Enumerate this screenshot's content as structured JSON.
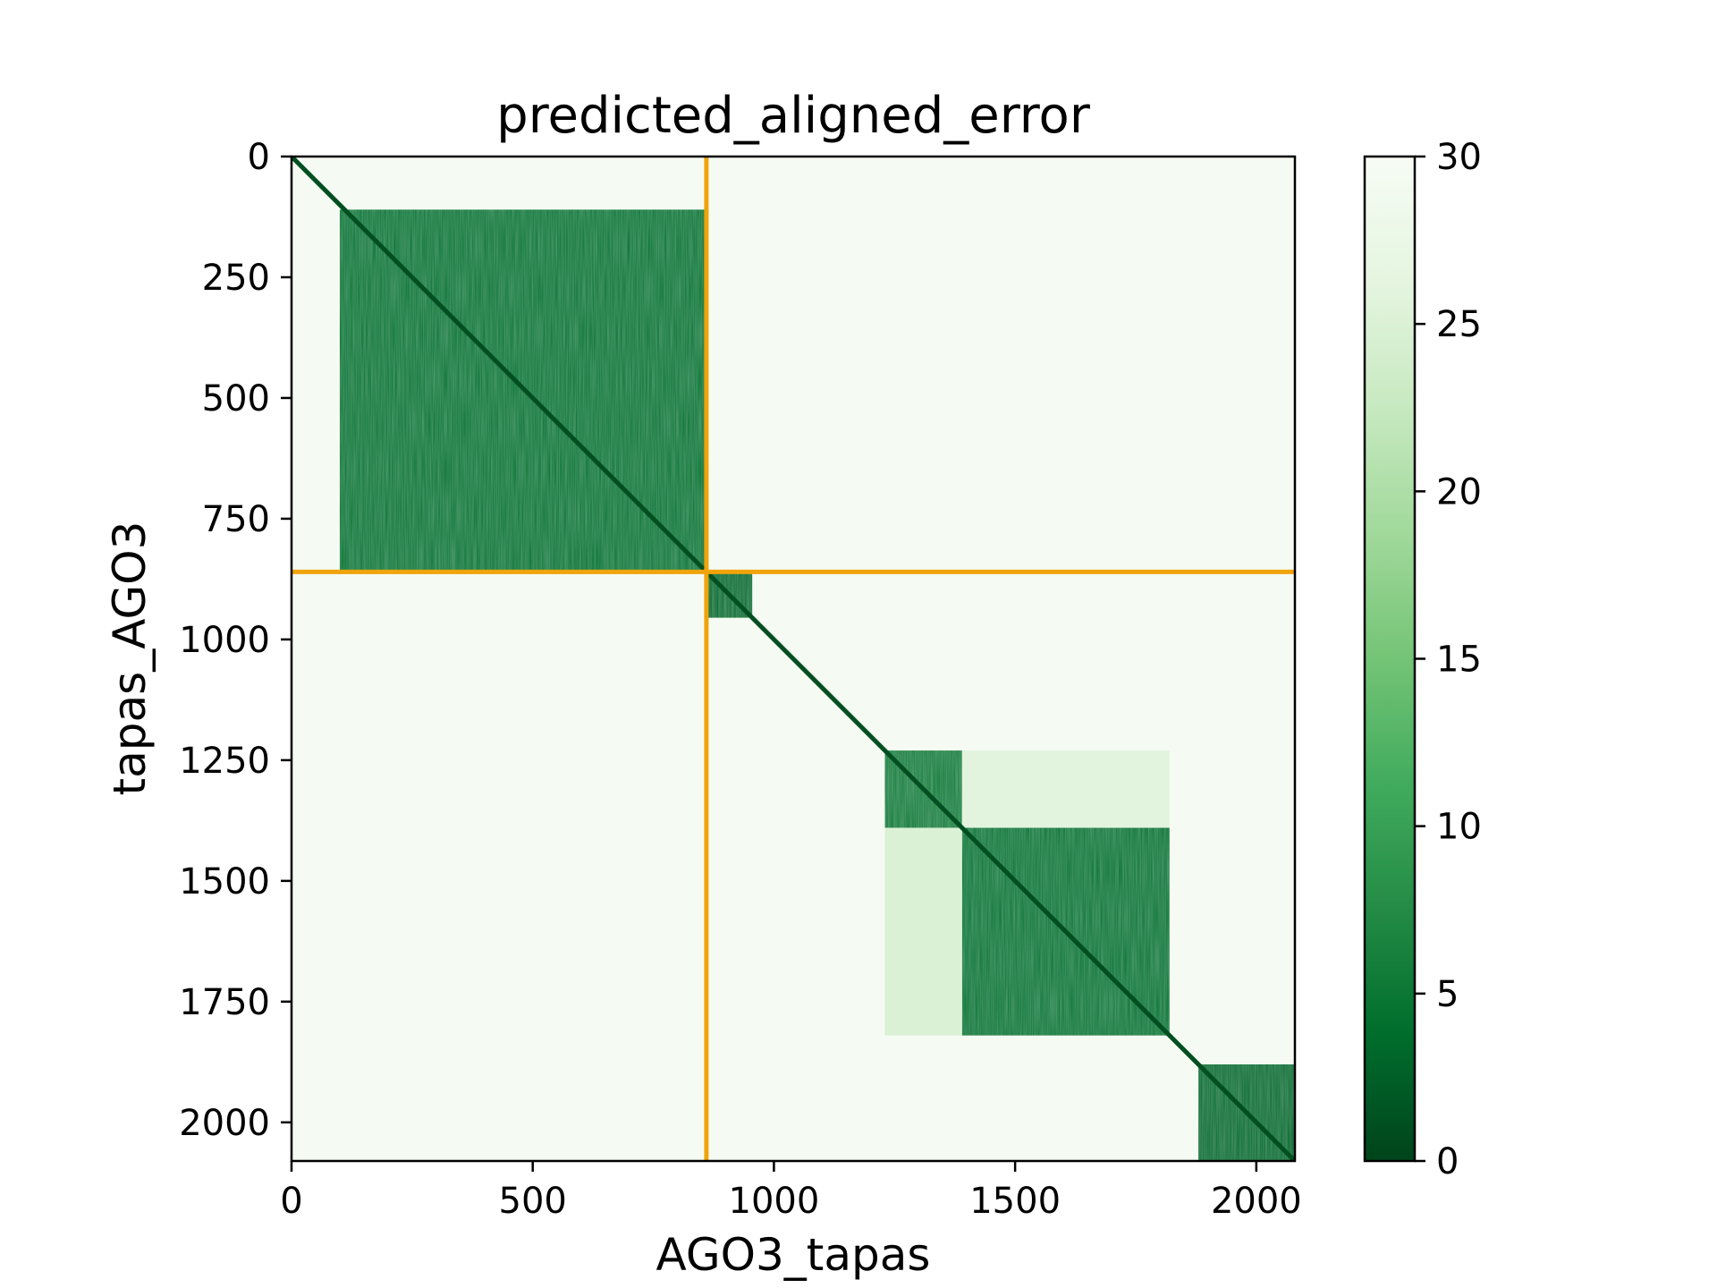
{
  "chart_data": {
    "type": "heatmap",
    "title": "predicted_aligned_error",
    "xlabel": "AGO3_tapas",
    "ylabel": "tapas_AGO3",
    "xlim": [
      0,
      2080
    ],
    "ylim": [
      2080,
      0
    ],
    "x_ticks": [
      0,
      500,
      1000,
      1500,
      2000
    ],
    "y_ticks": [
      0,
      250,
      500,
      750,
      1000,
      1250,
      1500,
      1750,
      2000
    ],
    "colorbar": {
      "min": 0,
      "max": 30,
      "ticks": [
        0,
        5,
        10,
        15,
        20,
        25,
        30
      ],
      "colormap": "Greens_r",
      "low_color": "#00441b",
      "high_color": "#f7fcf5"
    },
    "separator": {
      "position": 860,
      "color": "#f0a30a"
    },
    "background_value": 29.5,
    "diagonal_value": 1,
    "blocks": [
      {
        "x": [
          100,
          860
        ],
        "y": [
          110,
          860
        ],
        "value": 4
      },
      {
        "x": [
          860,
          955
        ],
        "y": [
          860,
          955
        ],
        "value": 3
      },
      {
        "x": [
          1230,
          1390
        ],
        "y": [
          1230,
          1390
        ],
        "value": 5
      },
      {
        "x": [
          1390,
          1820
        ],
        "y": [
          1390,
          1820
        ],
        "value": 4
      },
      {
        "x": [
          1880,
          2080
        ],
        "y": [
          1880,
          2080
        ],
        "value": 3
      },
      {
        "x": [
          1390,
          1820
        ],
        "y": [
          1230,
          1390
        ],
        "value": 26
      },
      {
        "x": [
          1230,
          1390
        ],
        "y": [
          1390,
          1820
        ],
        "value": 25
      }
    ]
  }
}
